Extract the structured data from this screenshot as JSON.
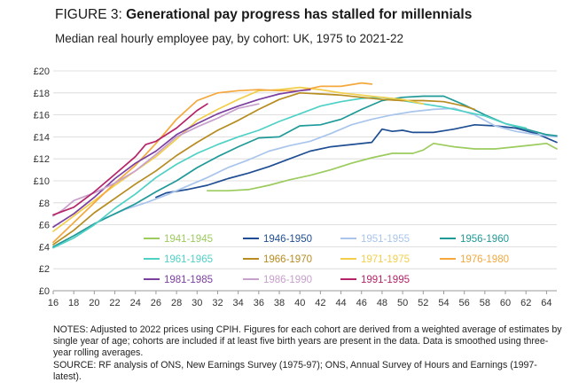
{
  "figure": {
    "label": "FIGURE 3:",
    "title": "Generational pay progress has stalled for millennials",
    "subtitle": "Median real hourly employee pay, by cohort: UK, 1975 to 2021-22"
  },
  "notes": {
    "notes_text": "NOTES: Adjusted to 2022 prices using CPIH. Figures for each cohort are derived from a weighted average of estimates by single year of age; cohorts are included if at least five birth years are present in the data. Data is smoothed using three-year rolling averages.",
    "source_text": "SOURCE: RF analysis of ONS, New Earnings Survey (1975-97); ONS, Annual Survey of Hours and Earnings (1997-latest)."
  },
  "chart_data": {
    "type": "line",
    "title": "Generational pay progress has stalled for millennials",
    "xlabel": "",
    "ylabel": "",
    "xlim": [
      16,
      65
    ],
    "ylim": [
      0,
      20
    ],
    "x_ticks": [
      16,
      18,
      20,
      22,
      24,
      26,
      28,
      30,
      32,
      34,
      36,
      38,
      40,
      42,
      44,
      46,
      48,
      50,
      52,
      54,
      56,
      58,
      60,
      62,
      64
    ],
    "y_ticks": [
      0,
      2,
      4,
      6,
      8,
      10,
      12,
      14,
      16,
      18,
      20
    ],
    "y_tick_labels": [
      "£0",
      "£2",
      "£4",
      "£6",
      "£8",
      "£10",
      "£12",
      "£14",
      "£16",
      "£18",
      "£20"
    ],
    "grid": true,
    "legend": "inside, lower-right",
    "series": [
      {
        "name": "1941-1945",
        "color": "#9ccb5e",
        "x": [
          31,
          33,
          35,
          37,
          39,
          41,
          43,
          45,
          47,
          49,
          51,
          52,
          53,
          55,
          57,
          59,
          61,
          63,
          64,
          65
        ],
        "y": [
          9.1,
          9.1,
          9.2,
          9.6,
          10.1,
          10.5,
          11.0,
          11.6,
          12.1,
          12.5,
          12.5,
          12.8,
          13.4,
          13.1,
          12.9,
          12.9,
          13.1,
          13.3,
          13.4,
          12.9
        ]
      },
      {
        "name": "1946-1950",
        "color": "#1f4e93",
        "x": [
          26,
          27,
          29,
          31,
          33,
          35,
          37,
          39,
          41,
          43,
          45,
          47,
          48,
          49,
          50,
          51,
          52,
          53,
          55,
          57,
          59,
          61,
          63,
          65
        ],
        "y": [
          8.5,
          8.9,
          9.2,
          9.6,
          10.2,
          10.7,
          11.3,
          12.0,
          12.7,
          13.1,
          13.3,
          13.5,
          14.7,
          14.5,
          14.6,
          14.4,
          14.4,
          14.4,
          14.7,
          15.1,
          15.0,
          14.8,
          14.3,
          13.5
        ]
      },
      {
        "name": "1951-1955",
        "color": "#a9c5ec",
        "x": [
          21,
          23,
          25,
          27,
          29,
          31,
          33,
          35,
          37,
          39,
          41,
          43,
          45,
          47,
          49,
          51,
          53,
          55,
          57,
          59,
          61,
          63,
          65
        ],
        "y": [
          6.6,
          7.4,
          8.0,
          8.7,
          9.5,
          10.3,
          11.2,
          11.9,
          12.7,
          13.2,
          13.6,
          14.3,
          15.1,
          15.6,
          16.0,
          16.3,
          16.5,
          16.6,
          16.0,
          15.0,
          14.5,
          14.2,
          14.0
        ]
      },
      {
        "name": "1956-1960",
        "color": "#1f9a98",
        "x": [
          16,
          18,
          20,
          22,
          24,
          26,
          28,
          30,
          32,
          34,
          36,
          38,
          40,
          42,
          44,
          46,
          48,
          50,
          52,
          54,
          56,
          58,
          60,
          62,
          64,
          65
        ],
        "y": [
          4.0,
          5.0,
          6.1,
          7.0,
          7.9,
          9.0,
          10.0,
          11.2,
          12.2,
          13.1,
          13.9,
          14.0,
          15.0,
          15.1,
          15.6,
          16.5,
          17.3,
          17.6,
          17.7,
          17.7,
          16.9,
          16.0,
          15.2,
          14.7,
          14.2,
          14.1
        ]
      },
      {
        "name": "1961-1965",
        "color": "#4fd1c6",
        "x": [
          16,
          18,
          20,
          22,
          24,
          26,
          28,
          30,
          32,
          34,
          36,
          38,
          40,
          42,
          44,
          46,
          48,
          50,
          52,
          54,
          56,
          58,
          60,
          62
        ],
        "y": [
          3.9,
          4.8,
          6.0,
          7.5,
          8.8,
          10.3,
          11.5,
          12.5,
          13.3,
          14.0,
          14.6,
          15.4,
          16.1,
          16.8,
          17.2,
          17.5,
          17.6,
          17.3,
          17.0,
          16.7,
          16.3,
          15.9,
          15.2,
          14.8
        ]
      },
      {
        "name": "1966-1970",
        "color": "#b78c20",
        "x": [
          16,
          18,
          20,
          22,
          24,
          26,
          28,
          30,
          32,
          34,
          36,
          38,
          40,
          42,
          44,
          46,
          48,
          50,
          52,
          54,
          56,
          57
        ],
        "y": [
          4.2,
          5.5,
          7.1,
          8.4,
          9.7,
          10.9,
          12.3,
          13.5,
          14.6,
          15.5,
          16.5,
          17.4,
          18.0,
          17.9,
          17.8,
          17.6,
          17.4,
          17.3,
          17.3,
          17.2,
          16.8,
          16.5
        ]
      },
      {
        "name": "1971-1975",
        "color": "#f2cf4a",
        "x": [
          16,
          18,
          20,
          22,
          24,
          26,
          28,
          30,
          32,
          34,
          36,
          38,
          40,
          42,
          44,
          46,
          48,
          50,
          52
        ],
        "y": [
          5.4,
          6.8,
          8.2,
          9.6,
          10.9,
          12.2,
          13.8,
          15.5,
          16.5,
          17.4,
          18.2,
          18.3,
          18.5,
          18.3,
          18.0,
          17.8,
          17.6,
          17.4,
          17.0
        ]
      },
      {
        "name": "1976-1980",
        "color": "#f4a83e",
        "x": [
          16,
          18,
          20,
          22,
          24,
          26,
          28,
          30,
          32,
          34,
          36,
          38,
          40,
          42,
          44,
          46,
          47
        ],
        "y": [
          4.4,
          6.2,
          8.0,
          9.8,
          11.4,
          13.4,
          15.6,
          17.3,
          18.0,
          18.2,
          18.3,
          18.2,
          18.2,
          18.6,
          18.6,
          18.9,
          18.8
        ]
      },
      {
        "name": "1981-1985",
        "color": "#7b3fa0",
        "x": [
          16,
          18,
          20,
          22,
          24,
          26,
          28,
          30,
          32,
          34,
          36,
          38,
          40,
          41
        ],
        "y": [
          5.8,
          7.0,
          8.5,
          10.2,
          11.6,
          12.7,
          14.2,
          15.2,
          16.1,
          16.8,
          17.4,
          17.9,
          18.2,
          18.3
        ]
      },
      {
        "name": "1986-1990",
        "color": "#c7a0cc",
        "x": [
          16,
          17,
          18,
          20,
          22,
          24,
          26,
          28,
          30,
          32,
          34,
          36
        ],
        "y": [
          6.8,
          7.4,
          8.2,
          8.9,
          9.8,
          10.9,
          12.4,
          14.0,
          14.9,
          15.7,
          16.6,
          17.0
        ]
      },
      {
        "name": "1991-1995",
        "color": "#b52468",
        "x": [
          16,
          18,
          20,
          22,
          24,
          25,
          26,
          28,
          30,
          31
        ],
        "y": [
          6.9,
          7.6,
          9.0,
          10.6,
          12.2,
          13.3,
          13.6,
          14.8,
          16.4,
          17.0
        ]
      }
    ]
  }
}
